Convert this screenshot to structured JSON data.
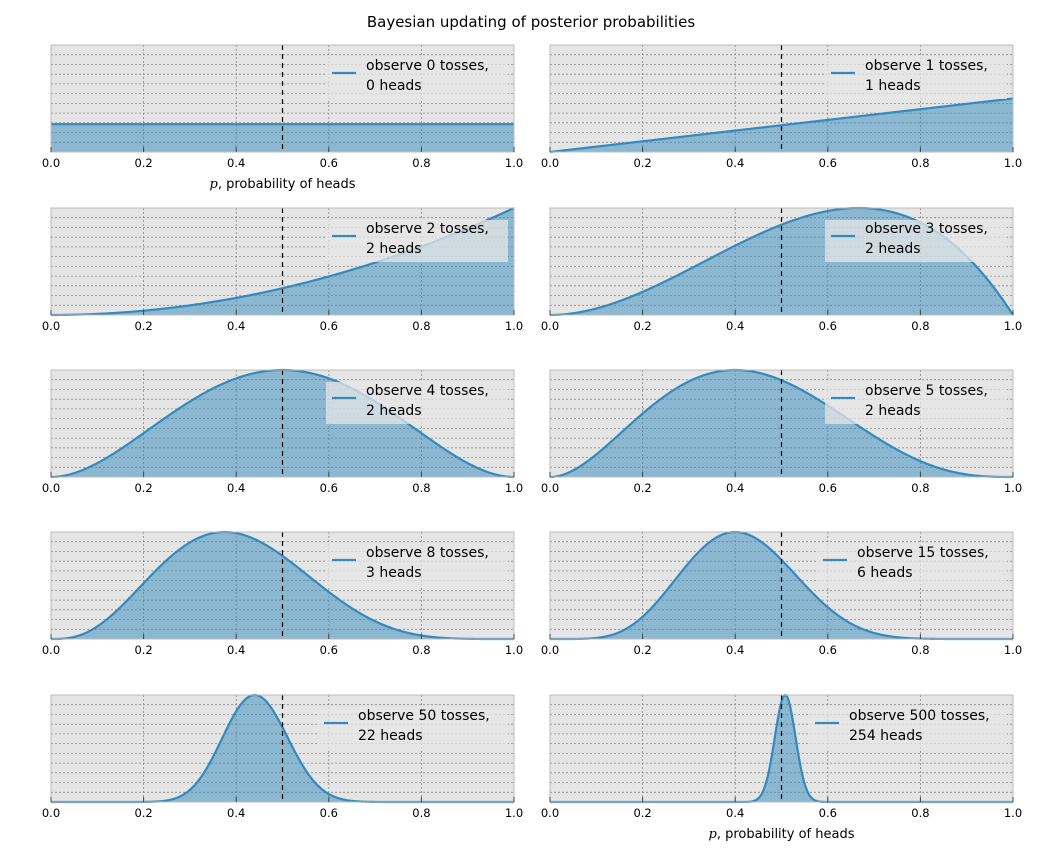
{
  "figure": {
    "title": "Bayesian updating of posterior probabilities",
    "xlabel_var": "p",
    "xlabel_text": ", probability of heads"
  },
  "colors": {
    "line": "#348abd",
    "fill": "#348abd",
    "axes_bg": "#e5e5e5",
    "grid": "#888888",
    "reference_line": "#000000"
  },
  "chart_data": [
    {
      "type": "area",
      "n": 0,
      "heads": 0,
      "legend": [
        "observe 0 tosses,",
        " 0 heads"
      ],
      "xlim": [
        0,
        1
      ],
      "x_ticks": [
        "0.0",
        "0.2",
        "0.4",
        "0.6",
        "0.8",
        "1.0"
      ],
      "vline": 0.5,
      "grid": true,
      "legend_position": "upper-right",
      "show_xlabel": true
    },
    {
      "type": "area",
      "n": 1,
      "heads": 1,
      "legend": [
        "observe 1 tosses,",
        " 1 heads"
      ],
      "xlim": [
        0,
        1
      ],
      "x_ticks": [
        "0.0",
        "0.2",
        "0.4",
        "0.6",
        "0.8",
        "1.0"
      ],
      "vline": 0.5,
      "grid": true,
      "legend_position": "upper-right",
      "show_xlabel": false
    },
    {
      "type": "area",
      "n": 2,
      "heads": 2,
      "legend": [
        "observe 2 tosses,",
        " 2 heads"
      ],
      "xlim": [
        0,
        1
      ],
      "x_ticks": [
        "0.0",
        "0.2",
        "0.4",
        "0.6",
        "0.8",
        "1.0"
      ],
      "vline": 0.5,
      "grid": true,
      "legend_position": "upper-right",
      "show_xlabel": false
    },
    {
      "type": "area",
      "n": 3,
      "heads": 2,
      "legend": [
        "observe 3 tosses,",
        " 2 heads"
      ],
      "xlim": [
        0,
        1
      ],
      "x_ticks": [
        "0.0",
        "0.2",
        "0.4",
        "0.6",
        "0.8",
        "1.0"
      ],
      "vline": 0.5,
      "grid": true,
      "legend_position": "upper-right",
      "show_xlabel": false
    },
    {
      "type": "area",
      "n": 4,
      "heads": 2,
      "legend": [
        "observe 4 tosses,",
        " 2 heads"
      ],
      "xlim": [
        0,
        1
      ],
      "x_ticks": [
        "0.0",
        "0.2",
        "0.4",
        "0.6",
        "0.8",
        "1.0"
      ],
      "vline": 0.5,
      "grid": true,
      "legend_position": "upper-right",
      "show_xlabel": false
    },
    {
      "type": "area",
      "n": 5,
      "heads": 2,
      "legend": [
        "observe 5 tosses,",
        " 2 heads"
      ],
      "xlim": [
        0,
        1
      ],
      "x_ticks": [
        "0.0",
        "0.2",
        "0.4",
        "0.6",
        "0.8",
        "1.0"
      ],
      "vline": 0.5,
      "grid": true,
      "legend_position": "upper-right",
      "show_xlabel": false
    },
    {
      "type": "area",
      "n": 8,
      "heads": 3,
      "legend": [
        "observe 8 tosses,",
        " 3 heads"
      ],
      "xlim": [
        0,
        1
      ],
      "x_ticks": [
        "0.0",
        "0.2",
        "0.4",
        "0.6",
        "0.8",
        "1.0"
      ],
      "vline": 0.5,
      "grid": true,
      "legend_position": "upper-right",
      "show_xlabel": false
    },
    {
      "type": "area",
      "n": 15,
      "heads": 6,
      "legend": [
        "observe 15 tosses,",
        " 6 heads"
      ],
      "xlim": [
        0,
        1
      ],
      "x_ticks": [
        "0.0",
        "0.2",
        "0.4",
        "0.6",
        "0.8",
        "1.0"
      ],
      "vline": 0.5,
      "grid": true,
      "legend_position": "upper-right",
      "show_xlabel": false
    },
    {
      "type": "area",
      "n": 50,
      "heads": 22,
      "legend": [
        "observe 50 tosses,",
        " 22 heads"
      ],
      "xlim": [
        0,
        1
      ],
      "x_ticks": [
        "0.0",
        "0.2",
        "0.4",
        "0.6",
        "0.8",
        "1.0"
      ],
      "vline": 0.5,
      "grid": true,
      "legend_position": "upper-right",
      "show_xlabel": false
    },
    {
      "type": "area",
      "n": 500,
      "heads": 254,
      "legend": [
        "observe 500 tosses,",
        " 254 heads"
      ],
      "xlim": [
        0,
        1
      ],
      "x_ticks": [
        "0.0",
        "0.2",
        "0.4",
        "0.6",
        "0.8",
        "1.0"
      ],
      "vline": 0.5,
      "grid": true,
      "legend_position": "upper-right",
      "show_xlabel": true
    }
  ]
}
